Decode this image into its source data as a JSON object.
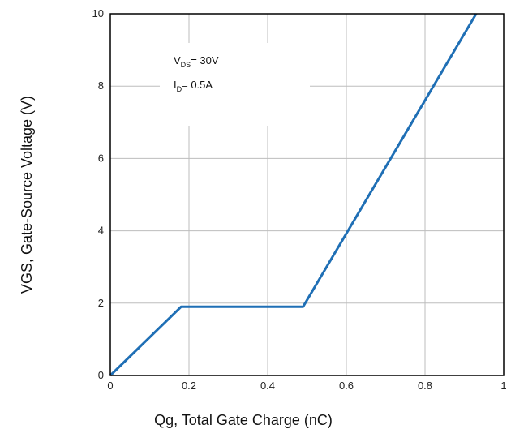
{
  "chart_data": {
    "type": "line",
    "xlabel": "Qg, Total Gate Charge (nC)",
    "ylabel": "VGS, Gate-Source Voltage (V)",
    "xlim": [
      0,
      1
    ],
    "ylim": [
      0,
      10
    ],
    "xticks": [
      0,
      0.2,
      0.4,
      0.6,
      0.8,
      1
    ],
    "xtick_labels": [
      "0",
      "0.2",
      "0.4",
      "0.6",
      "0.8",
      "1"
    ],
    "yticks": [
      0,
      2,
      4,
      6,
      8,
      10
    ],
    "ytick_labels": [
      "0",
      "2",
      "4",
      "6",
      "8",
      "10"
    ],
    "grid": true,
    "series": [
      {
        "color": "#1f6fb5",
        "x": [
          0,
          0.18,
          0.49,
          0.93
        ],
        "y": [
          0,
          1.9,
          1.9,
          10
        ]
      }
    ],
    "annotations": [
      {
        "main": "V",
        "sub": "DS",
        "rest": "= 30V"
      },
      {
        "main": "I",
        "sub": "D",
        "rest": "= 0.5A"
      }
    ]
  }
}
